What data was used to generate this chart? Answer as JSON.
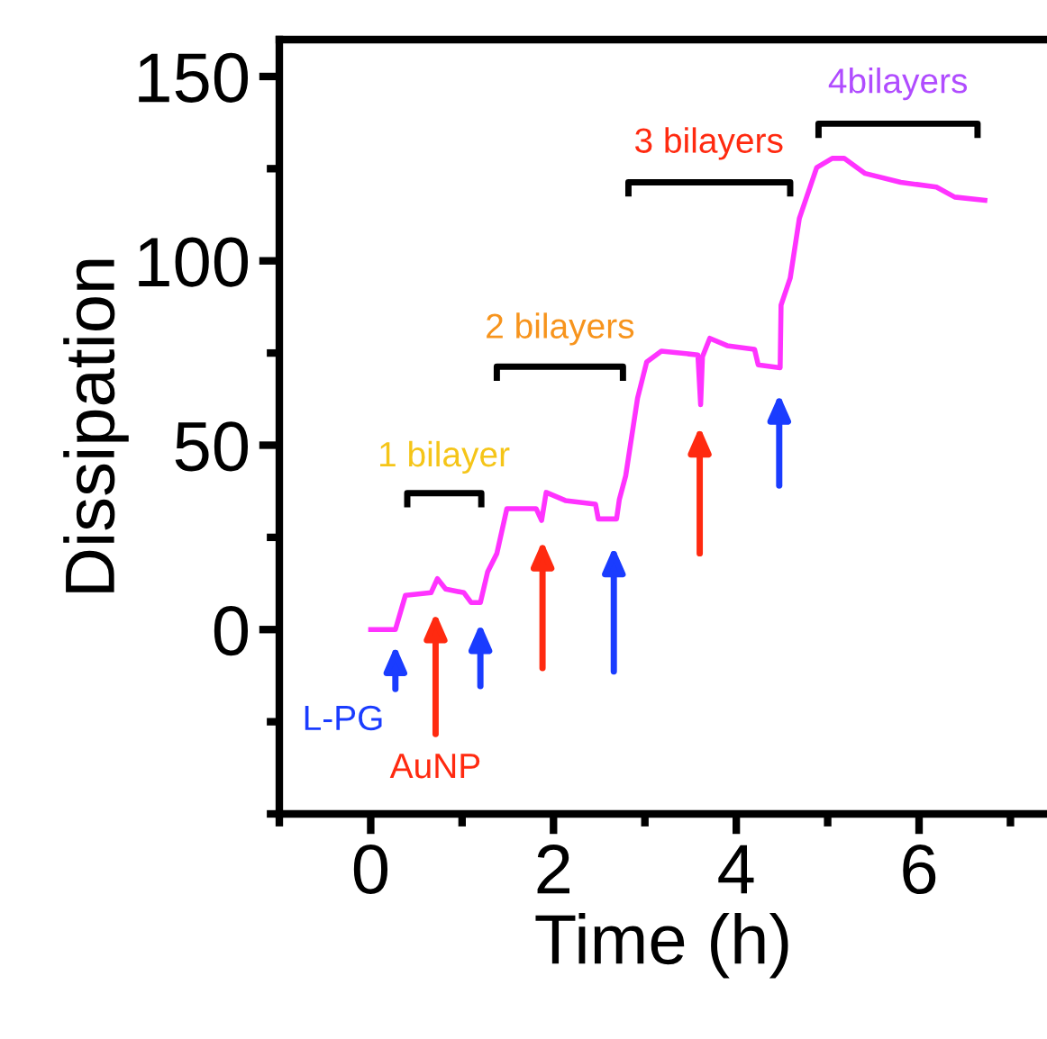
{
  "chart_data": {
    "type": "line",
    "xlabel": "Time (h)",
    "ylabel": "Dissipation",
    "x": [
      0.0,
      0.27,
      0.38,
      0.66,
      0.73,
      0.82,
      1.02,
      1.1,
      1.2,
      1.28,
      1.38,
      1.49,
      1.81,
      1.87,
      1.92,
      2.13,
      2.46,
      2.49,
      2.69,
      2.72,
      2.79,
      2.92,
      3.02,
      3.18,
      3.58,
      3.61,
      3.63,
      3.71,
      3.9,
      4.2,
      4.24,
      4.48,
      4.49,
      4.59,
      4.69,
      4.88,
      5.05,
      5.18,
      5.41,
      5.8,
      6.19,
      6.39,
      6.72
    ],
    "series": [
      {
        "color": "#ff33ff",
        "values": [
          0,
          0,
          9.3,
          10,
          13.8,
          11,
          10,
          7.3,
          7.3,
          15.7,
          20.6,
          32.8,
          32.8,
          29.6,
          37.2,
          35,
          34,
          30,
          30,
          35.2,
          41.7,
          62.8,
          72.6,
          75.5,
          74.5,
          61,
          74,
          79,
          77,
          76,
          71.8,
          71,
          88,
          95.3,
          111.5,
          125.3,
          127.8,
          127.8,
          123.7,
          121.3,
          120,
          117.3,
          116.4
        ]
      }
    ],
    "xlim": [
      -1,
      7.4
    ],
    "xticks": [
      0,
      2,
      4,
      6
    ],
    "ylim": [
      -50,
      160
    ],
    "yticks": [
      0,
      50,
      100,
      150
    ],
    "marker": "none",
    "line_style": "solid",
    "grid": false,
    "legend": false,
    "annotations": [
      "1 bilayer",
      "2 bilayers",
      "3 bilayers",
      "4bilayers",
      "L-PG",
      "AuNP"
    ]
  }
}
